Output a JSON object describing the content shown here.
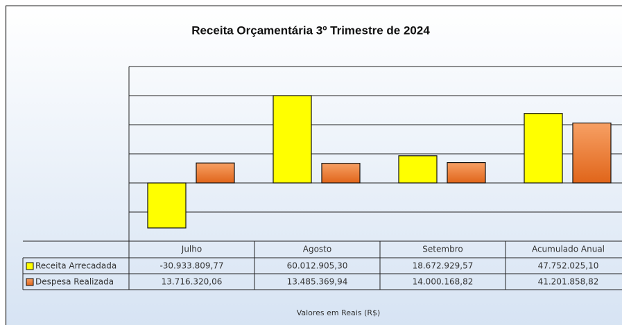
{
  "chart_data": {
    "type": "bar",
    "title": "Receita Orçamentária 3º Trimestre de 2024",
    "categories": [
      "Julho",
      "Agosto",
      "Setembro",
      "Acumulado Anual"
    ],
    "series": [
      {
        "name": "Receita Arrecadada",
        "color": "#ffff00",
        "values": [
          -30933809.77,
          60012905.3,
          18672929.57,
          47752025.1
        ],
        "value_labels": [
          "-30.933.809,77",
          "60.012.905,30",
          "18.672.929,57",
          "47.752.025,10"
        ]
      },
      {
        "name": "Despesa Realizada",
        "color": "#ee7a30",
        "values": [
          13716320.06,
          13485369.94,
          14000168.82,
          41201858.82
        ],
        "value_labels": [
          "13.716.320,06",
          "13.485.369,94",
          "14.000.168,82",
          "41.201.858,82"
        ]
      }
    ],
    "x_label": "Valores em Reais (R$)",
    "ylim": [
      -40000000,
      80000000
    ],
    "yticks": [
      -40000000,
      -20000000,
      0,
      20000000,
      40000000,
      60000000,
      80000000
    ],
    "grid": true
  }
}
